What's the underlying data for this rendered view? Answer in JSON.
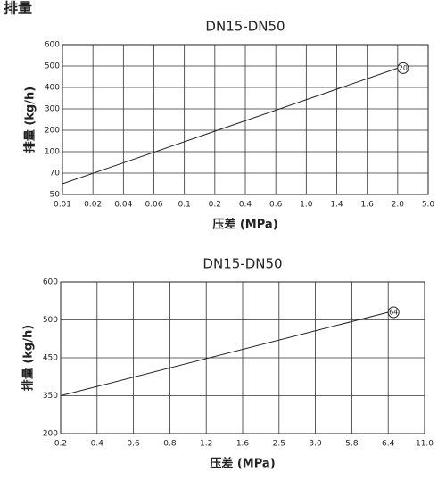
{
  "page_title": "排量",
  "chart_data": [
    {
      "type": "line",
      "title": "DN15-DN50",
      "xlabel": "压差 (MPa)",
      "ylabel": "排量 (kg/h)",
      "x": [
        0.01,
        2.0
      ],
      "series": [
        {
          "name": "20",
          "color": "#222222",
          "values": [
            60,
            490
          ]
        }
      ],
      "xticks": [
        0.01,
        0.02,
        0.04,
        0.06,
        0.1,
        0.2,
        0.4,
        0.6,
        {
          "value": 1,
          "label": "1.0"
        },
        1.4,
        1.6,
        {
          "value": 2,
          "label": "2.0"
        },
        {
          "value": 5,
          "label": "5.0"
        }
      ],
      "yticks": [
        50,
        70,
        100,
        200,
        300,
        400,
        500,
        600
      ],
      "xlim": [
        0.01,
        5
      ],
      "ylim": [
        50,
        600
      ],
      "grid": true
    },
    {
      "type": "line",
      "title": "DN15-DN50",
      "xlabel": "压差 (MPa)",
      "ylabel": "排量 (kg/h)",
      "x": [
        0.2,
        6.4
      ],
      "series": [
        {
          "name": "64",
          "color": "#222222",
          "values": [
            350,
            520
          ]
        }
      ],
      "xticks": [
        0.2,
        0.4,
        0.6,
        0.8,
        1.2,
        1.6,
        2.5,
        {
          "value": 3,
          "label": "3.0"
        },
        5.8,
        6.4,
        {
          "value": 11,
          "label": "11.0"
        }
      ],
      "yticks": [
        200,
        350,
        450,
        500,
        600
      ],
      "xlim": [
        0.2,
        11
      ],
      "ylim": [
        200,
        600
      ],
      "grid": true
    }
  ]
}
